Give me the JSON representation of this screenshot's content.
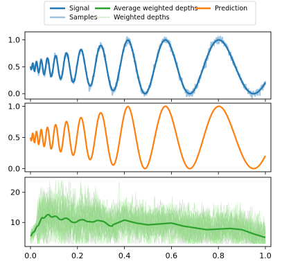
{
  "legend": {
    "entries": [
      {
        "label": "Signal",
        "color": "#1f77b4",
        "style": "solid-thick"
      },
      {
        "label": "Samples",
        "color": "#9ec1de",
        "style": "solid-thick-light"
      },
      {
        "label": "Average weighted depths",
        "color": "#2ca02c",
        "style": "solid-thick"
      },
      {
        "label": "Weighted depths",
        "color": "#b8e0b0",
        "style": "solid-thin"
      },
      {
        "label": "Prediction",
        "color": "#ff7f0e",
        "style": "solid-thick"
      }
    ]
  },
  "chart_data": [
    {
      "type": "line",
      "panel": "top",
      "function": "0.5 + 0.5*sin(2*pi*x^(1/3)*... ) chirp, rising to ~1.0 near x=0.42 and ~0.9 near x=0.77",
      "x_range": [
        0.0,
        1.0
      ],
      "ylim": [
        -0.1,
        1.15
      ],
      "yticks": [
        "0.0",
        "0.5",
        "1.0"
      ],
      "series": [
        {
          "name": "Signal",
          "color": "#1f77b4"
        },
        {
          "name": "Samples",
          "color": "#9ec1de"
        }
      ],
      "grid": false
    },
    {
      "type": "line",
      "panel": "middle",
      "x_range": [
        0.0,
        1.0
      ],
      "ylim": [
        -0.05,
        1.05
      ],
      "yticks": [
        "0.0",
        "0.5",
        "1.0"
      ],
      "series": [
        {
          "name": "Prediction",
          "color": "#ff7f0e"
        }
      ],
      "grid": false
    },
    {
      "type": "line",
      "panel": "bottom",
      "x_range": [
        0.0,
        1.0
      ],
      "ylim": [
        2,
        25
      ],
      "yticks": [
        "10",
        "20"
      ],
      "xticks": [
        "0.0",
        "0.2",
        "0.4",
        "0.6",
        "0.8",
        "1.0"
      ],
      "series": [
        {
          "name": "Average weighted depths",
          "color": "#2ca02c",
          "x": [
            0.0,
            0.02,
            0.05,
            0.08,
            0.1,
            0.15,
            0.2,
            0.25,
            0.3,
            0.35,
            0.4,
            0.45,
            0.5,
            0.55,
            0.6,
            0.65,
            0.7,
            0.75,
            0.8,
            0.85,
            0.9,
            0.95,
            1.0
          ],
          "values": [
            5.5,
            7.5,
            11.5,
            12.5,
            11.8,
            11.0,
            10.2,
            10.8,
            10.0,
            9.2,
            10.8,
            9.8,
            9.2,
            9.5,
            9.8,
            8.8,
            8.2,
            7.6,
            7.8,
            8.0,
            7.6,
            6.2,
            5.0
          ]
        },
        {
          "name": "Weighted depths",
          "color": "#b8e0b0"
        }
      ],
      "grid": false
    }
  ]
}
